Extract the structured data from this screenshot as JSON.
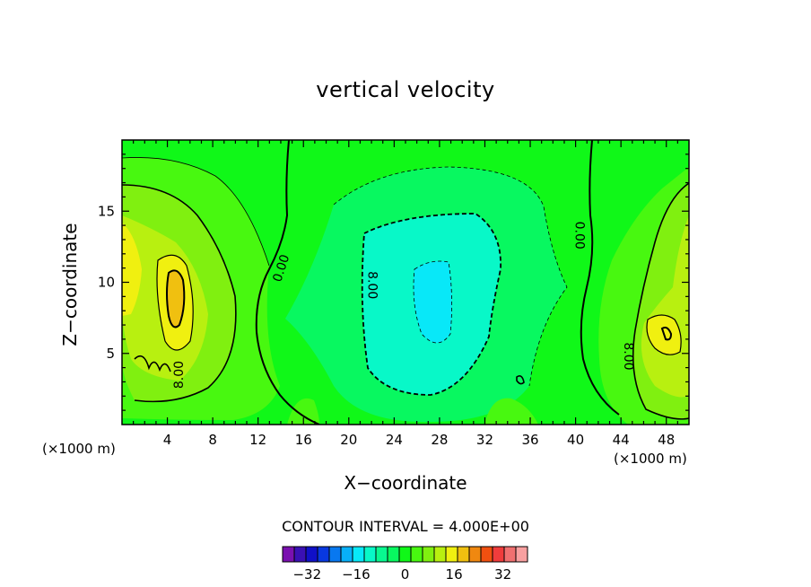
{
  "chart_data": {
    "type": "heatmap",
    "title": "vertical velocity",
    "xlabel": "X−coordinate",
    "ylabel": "Z−coordinate",
    "x_unit": "(×1000 m)",
    "xlim": [
      0,
      50
    ],
    "ylim": [
      0,
      20
    ],
    "x_ticks": [
      4,
      8,
      12,
      16,
      20,
      24,
      28,
      32,
      36,
      40,
      44,
      48
    ],
    "y_ticks": [
      5,
      10,
      15
    ],
    "contour_labels": [
      "0.00",
      "0.00",
      "8.00",
      "8.00",
      "8.00"
    ],
    "contour_interval_text": "CONTOUR INTERVAL = 4.000E+00",
    "colorbar": {
      "levels": [
        -40,
        -36,
        -32,
        -28,
        -24,
        -20,
        -16,
        -12,
        -8,
        -4,
        0,
        4,
        8,
        12,
        16,
        20,
        24,
        28,
        32,
        36,
        40
      ],
      "tick_labels": [
        "−32",
        "−16",
        "0",
        "16",
        "32"
      ],
      "tick_values": [
        -32,
        -16,
        0,
        16,
        32
      ],
      "colors": [
        "#7a10b0",
        "#3a10b4",
        "#1010c8",
        "#0838e0",
        "#0878f0",
        "#08b0f8",
        "#08e8f8",
        "#08f8c8",
        "#08f890",
        "#08f860",
        "#10f818",
        "#48f810",
        "#80f010",
        "#b8f010",
        "#f0f010",
        "#f0c010",
        "#f08810",
        "#f05010",
        "#f03c3c",
        "#f07070",
        "#f8a0a0"
      ]
    },
    "field_features": [
      {
        "x": 5,
        "z": 9,
        "value": 28,
        "kind": "updraft"
      },
      {
        "x": 49,
        "z": 7,
        "value": 20,
        "kind": "updraft"
      },
      {
        "x": 28,
        "z": 9,
        "value": -16,
        "kind": "downdraft"
      },
      {
        "x": 22,
        "z": 10,
        "value": -8,
        "kind": "downdraft"
      }
    ]
  }
}
